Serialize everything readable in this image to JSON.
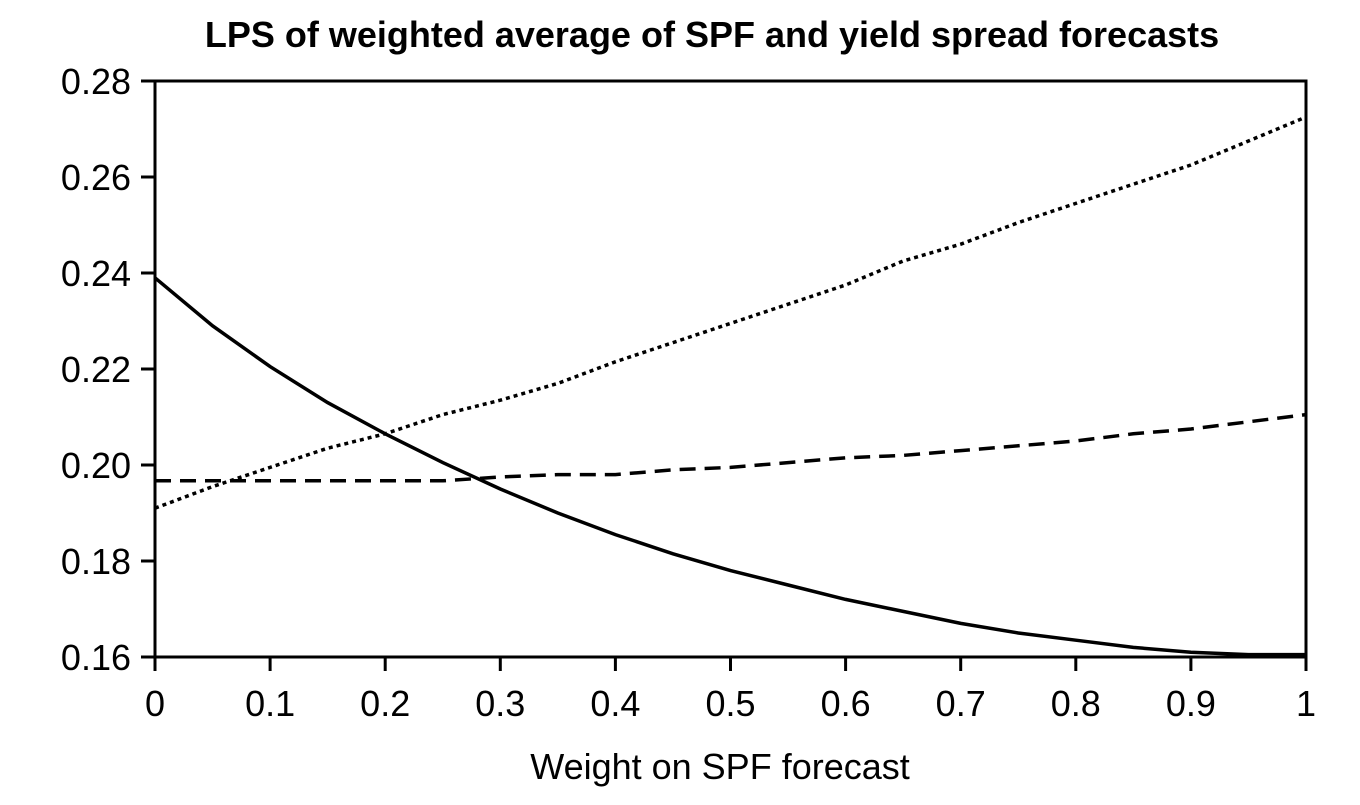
{
  "chart_data": {
    "type": "line",
    "title": "LPS of weighted average of SPF and yield spread forecasts",
    "xlabel": "Weight on SPF forecast",
    "ylabel": "",
    "xlim": [
      0,
      1
    ],
    "ylim": [
      0.16,
      0.28
    ],
    "grid": false,
    "legend": "none",
    "x_ticks": [
      "0",
      "0.1",
      "0.2",
      "0.3",
      "0.4",
      "0.5",
      "0.6",
      "0.7",
      "0.8",
      "0.9",
      "1"
    ],
    "y_ticks": [
      "0.16",
      "0.18",
      "0.20",
      "0.22",
      "0.24",
      "0.26",
      "0.28"
    ],
    "x": [
      0,
      0.05,
      0.1,
      0.15,
      0.2,
      0.25,
      0.3,
      0.35,
      0.4,
      0.45,
      0.5,
      0.55,
      0.6,
      0.65,
      0.7,
      0.75,
      0.8,
      0.85,
      0.9,
      0.95,
      1
    ],
    "series": [
      {
        "style": "solid",
        "values": [
          0.239,
          0.229,
          0.2205,
          0.213,
          0.2065,
          0.2005,
          0.195,
          0.19,
          0.1855,
          0.1815,
          0.178,
          0.175,
          0.172,
          0.1695,
          0.167,
          0.165,
          0.1635,
          0.162,
          0.161,
          0.1605,
          0.1605
        ]
      },
      {
        "style": "dashed",
        "values": [
          0.1967,
          0.1967,
          0.1967,
          0.1967,
          0.1967,
          0.1967,
          0.1975,
          0.198,
          0.198,
          0.199,
          0.1995,
          0.2005,
          0.2015,
          0.202,
          0.203,
          0.204,
          0.205,
          0.2065,
          0.2075,
          0.209,
          0.2105
        ]
      },
      {
        "style": "dotted",
        "values": [
          0.191,
          0.1955,
          0.1995,
          0.2035,
          0.2065,
          0.2105,
          0.2135,
          0.217,
          0.2215,
          0.2255,
          0.2295,
          0.2335,
          0.2375,
          0.2425,
          0.246,
          0.2505,
          0.2545,
          0.2585,
          0.2625,
          0.2675,
          0.2725
        ]
      }
    ]
  }
}
